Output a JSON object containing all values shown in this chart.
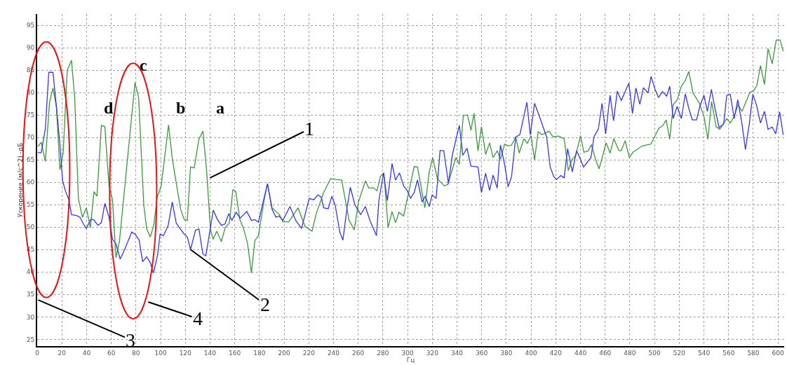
{
  "chart_data": {
    "type": "line",
    "xlabel": "Гц",
    "ylabel": "Ускорение (м/с^2) -дБ",
    "xlim": [
      0,
      605
    ],
    "ylim": [
      23.5,
      97.5
    ],
    "xticks": [
      0,
      20,
      40,
      60,
      80,
      100,
      120,
      140,
      160,
      180,
      200,
      220,
      240,
      260,
      280,
      300,
      320,
      340,
      360,
      380,
      400,
      420,
      440,
      460,
      480,
      500,
      520,
      540,
      560,
      580,
      600
    ],
    "yticks": [
      25,
      30,
      35,
      40,
      45,
      50,
      55,
      60,
      65,
      70,
      75,
      80,
      85,
      90,
      95
    ],
    "grid": true,
    "line_style": "solid",
    "marker": "none",
    "series": [
      {
        "color": "#3a9a3a",
        "x": [
          0.5,
          3.3,
          6.6,
          10,
          12.8,
          15.6,
          18.4,
          21,
          24.4,
          27.8,
          30.4,
          33.4,
          36.6,
          39.8,
          43.1,
          46,
          48.4,
          52,
          54.8,
          58.2,
          61,
          63.8,
          66.6,
          79.2,
          82.2,
          86.3,
          88.7,
          91.6,
          94.4,
          97.2,
          100.4,
          106.4,
          109.4,
          112.2,
          116.3,
          119.1,
          121.6,
          124.2,
          127.2,
          131,
          134.2,
          137.3,
          140.3,
          142.5,
          145.4,
          149.2,
          152.3,
          155.6,
          158.5,
          160.9,
          164.1,
          166.9,
          170.3,
          173.5,
          176.3,
          179.2,
          183.5,
          186.5,
          190.2,
          196.2,
          199,
          203.8,
          211.3,
          216.9,
          222.6,
          226.3,
          232,
          237.6,
          246.6,
          252.6,
          256.8,
          260.2,
          265.8,
          268.6,
          272.4,
          275.2,
          278,
          280.8,
          284.2,
          287.4,
          290.2,
          293,
          296.8,
          305.3,
          308,
          314,
          317.5,
          320.3,
          324.1,
          329.7,
          332.5,
          339.1,
          341.9,
          345.1,
          348.5,
          351.3,
          353.8,
          357,
          359.8,
          363.2,
          366.4,
          369.2,
          372.6,
          375.2,
          378.6,
          381.4,
          384.2,
          387.6,
          390.4,
          394.2,
          397,
          400,
          402.8,
          405.7,
          408.9,
          414.5,
          417.9,
          422.1,
          426.8,
          430.2,
          433,
          436.2,
          440,
          442.8,
          446.2,
          448.9,
          452.3,
          455.1,
          460.8,
          464,
          467,
          471.1,
          473,
          476.2,
          479.6,
          482.5,
          490,
          497,
          503.6,
          506.6,
          509.4,
          512.3,
          515.1,
          518.3,
          521.7,
          524.9,
          527.7,
          531.1,
          536.2,
          540,
          543.2,
          546.2,
          549.8,
          552.8,
          558.5,
          561.3,
          564.5,
          567.7,
          570.8,
          577.2,
          580.2,
          582.8,
          585.8,
          589,
          591.9,
          595.3,
          598.5,
          601.7,
          604.2
        ],
        "values": [
          68,
          68.9,
          64.6,
          77.8,
          81,
          76.8,
          62.8,
          66.4,
          85,
          87.2,
          78.8,
          56.3,
          52.2,
          54.3,
          49.9,
          57.9,
          56.9,
          72.7,
          72.4,
          59.2,
          56.1,
          43.2,
          46.8,
          82.2,
          78.8,
          55,
          49.6,
          47.8,
          50.4,
          56.6,
          59.2,
          72.8,
          65.4,
          60.5,
          53.8,
          51.7,
          51.5,
          63.4,
          63.2,
          69.6,
          71.4,
          62.3,
          49.6,
          47.3,
          49.1,
          46.8,
          49.9,
          50.9,
          58.4,
          57.9,
          51.7,
          49.9,
          46.5,
          39.8,
          47,
          48.1,
          55.6,
          59.7,
          54.3,
          52.8,
          51.2,
          51.2,
          54.3,
          50.2,
          49.1,
          53.3,
          57.7,
          60.8,
          60.5,
          51.5,
          49.4,
          55.6,
          60.3,
          58.7,
          58.8,
          58.1,
          61.3,
          62.1,
          49.9,
          53.5,
          51,
          53.3,
          52.5,
          63.5,
          63.4,
          54.3,
          62.3,
          65.5,
          60.8,
          59.2,
          59.5,
          65.5,
          64,
          74.9,
          75,
          71.6,
          75.4,
          67,
          72.4,
          66.2,
          68.8,
          65.5,
          67,
          65.2,
          68.5,
          68.1,
          68.3,
          70.1,
          66.5,
          69.7,
          68.7,
          70.4,
          65,
          71.3,
          70.6,
          71.4,
          70.1,
          70.3,
          69.7,
          62.6,
          65,
          66,
          70.4,
          66.7,
          67,
          68.4,
          65,
          63,
          68.8,
          66.5,
          69.7,
          67.1,
          67,
          69.3,
          65.5,
          66.7,
          68.1,
          68.5,
          72.1,
          72.6,
          73.9,
          69.6,
          77.3,
          78.3,
          81.4,
          82.7,
          84.7,
          79.9,
          77.7,
          74.7,
          69.6,
          78,
          72.4,
          71.8,
          74.2,
          73.2,
          74.7,
          77.3,
          75.8,
          80,
          80.4,
          81.5,
          86,
          81.8,
          89.8,
          86.4,
          91.7,
          91.7,
          89.2
        ]
      },
      {
        "color": "#3535f5",
        "x": [
          0.5,
          3.3,
          6.6,
          9.4,
          12.8,
          15.6,
          18.4,
          20.6,
          23.1,
          25.7,
          27.8,
          31.9,
          34.7,
          37.5,
          39.8,
          43.5,
          46,
          49.2,
          52,
          54.8,
          58.2,
          61,
          63.8,
          67.2,
          69.5,
          76.6,
          79.4,
          82.6,
          85.4,
          88.6,
          91.6,
          94.2,
          97.6,
          99.5,
          102.3,
          106.1,
          109.4,
          112.6,
          116,
          118.6,
          121.6,
          124.2,
          128.2,
          131,
          134.2,
          136.6,
          142.6,
          146,
          149.2,
          152.1,
          155.2,
          157.7,
          161.1,
          164.3,
          169.8,
          173.5,
          176.3,
          179.2,
          186.5,
          190.2,
          193.4,
          195.9,
          199,
          204.7,
          209.4,
          214.1,
          220.3,
          224.1,
          227.3,
          230.1,
          232,
          235.7,
          238.6,
          241.4,
          245.1,
          247.6,
          250.8,
          253.6,
          257.3,
          262,
          265.8,
          269.5,
          274.8,
          276.7,
          280.5,
          283.6,
          287.4,
          290.2,
          293.4,
          296.8,
          299.6,
          302.4,
          305.3,
          308,
          311.8,
          314.3,
          317.5,
          319.9,
          323.1,
          326.3,
          329.3,
          333.1,
          336.3,
          341.9,
          344.7,
          348.1,
          351.3,
          357,
          359.8,
          363.2,
          366.4,
          369.2,
          372.6,
          375.2,
          378.6,
          381.4,
          384.2,
          387.6,
          390.9,
          396.6,
          399.4,
          402.8,
          406,
          409.8,
          412.6,
          415.5,
          418.3,
          420.6,
          424,
          426.8,
          429.6,
          433.4,
          436.8,
          439.1,
          442.5,
          448.5,
          450.9,
          454.5,
          457.5,
          460.4,
          464,
          466.8,
          469.8,
          473,
          479.2,
          482.1,
          484.9,
          488.1,
          491,
          494.7,
          497.2,
          500.4,
          503.2,
          506.4,
          509.8,
          512.3,
          515.1,
          518.3,
          521.7,
          524.9,
          527.7,
          530.6,
          534,
          536.8,
          540,
          542.8,
          546,
          549.1,
          552.3,
          556,
          558.5,
          561.3,
          564.5,
          567.4,
          570.8,
          573.6,
          576.8,
          579.6,
          582.5,
          585.8,
          589,
          591.9,
          595.3,
          598.1,
          601.3,
          604.2
        ],
        "values": [
          66.6,
          66.6,
          71.9,
          84.5,
          84.5,
          76.8,
          68.5,
          60.3,
          57.9,
          56.1,
          52.8,
          52.6,
          52.2,
          50.7,
          49.7,
          51.8,
          51.6,
          50.4,
          51,
          55.3,
          52.2,
          47.3,
          46.3,
          42.9,
          44.2,
          48.9,
          48.4,
          47.1,
          42.3,
          43.4,
          42.1,
          39.8,
          43.9,
          48.4,
          48.1,
          50.4,
          55.6,
          50.9,
          49.6,
          48.6,
          47.8,
          45,
          49.3,
          49.6,
          44,
          43.6,
          53.8,
          51.7,
          50.4,
          50.7,
          53,
          51.5,
          53.3,
          52,
          53.5,
          51.5,
          51.7,
          51.1,
          59.7,
          54,
          52.2,
          52.5,
          51.5,
          54.6,
          51.5,
          49.7,
          56.4,
          56.1,
          57.2,
          56.7,
          54.3,
          54.1,
          56.9,
          54.8,
          48.9,
          47.1,
          54,
          58.9,
          55,
          52.8,
          54.6,
          51.5,
          48.1,
          55.9,
          62.1,
          55.9,
          64.2,
          60.5,
          62.1,
          59.2,
          58.2,
          56.4,
          57.7,
          60.5,
          55.6,
          56.9,
          54.6,
          57.2,
          56.4,
          67.1,
          67,
          59.7,
          66.2,
          72.7,
          66,
          67.6,
          63.6,
          63.4,
          57.7,
          62,
          58.2,
          61.6,
          58.7,
          68.3,
          63.9,
          59,
          61.3,
          70.1,
          70.6,
          77.8,
          70.6,
          77.6,
          75.3,
          72.3,
          70.1,
          63.4,
          61.3,
          60.6,
          61.5,
          61,
          67.5,
          62.3,
          67,
          65.7,
          63.4,
          65.5,
          70.1,
          71.9,
          77.6,
          70.8,
          79.4,
          73.7,
          80.3,
          78.2,
          82.1,
          75.3,
          81,
          77.4,
          81.1,
          79.9,
          83.6,
          80.7,
          78.9,
          80.2,
          79.2,
          81.4,
          74.2,
          76.9,
          74.2,
          79.7,
          76.5,
          73.9,
          73.9,
          77,
          79.4,
          75.8,
          80.7,
          76.3,
          72.2,
          73,
          79.4,
          79.6,
          74.2,
          78.4,
          73,
          67.3,
          73.2,
          79.6,
          77.3,
          73.2,
          75.8,
          71.8,
          72.3,
          70.8,
          75.7,
          70.6
        ]
      }
    ],
    "annotations": [
      {
        "text": "1",
        "x": 140,
        "y": 61
      },
      {
        "text": "2",
        "x": 124.2,
        "y": 45
      },
      "3",
      "4",
      {
        "text": "a",
        "x": 134.2,
        "y": 71.4
      },
      {
        "text": "b",
        "x": 106.4,
        "y": 72.8
      },
      {
        "text": "c",
        "x": 79.2,
        "y": 82.2
      },
      {
        "text": "d",
        "x": 52,
        "y": 72.7
      }
    ]
  }
}
